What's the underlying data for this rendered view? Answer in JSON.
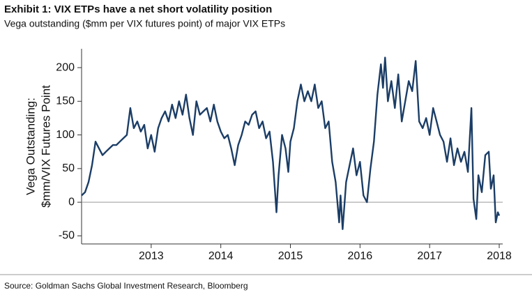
{
  "chart_data": {
    "type": "line",
    "title": "Exhibit 1: VIX ETPs have a net short volatility position",
    "subtitle": "Vega outstanding ($mm per VIX futures point) of major VIX ETPs",
    "ylabel": [
      "Vega Outstanding:",
      "$mm/VIX Futures Point"
    ],
    "source": "Source: Goldman Sachs Global Investment Research, Bloomberg",
    "xlim": [
      2012,
      2018.05
    ],
    "xticks": [
      2013,
      2014,
      2015,
      2016,
      2017,
      2018
    ],
    "ylim": [
      -62,
      228
    ],
    "yticks": [
      -50,
      0,
      50,
      100,
      150,
      200
    ],
    "zero_line": true,
    "x": [
      2012.0,
      2012.05,
      2012.1,
      2012.15,
      2012.2,
      2012.25,
      2012.3,
      2012.35,
      2012.4,
      2012.45,
      2012.5,
      2012.55,
      2012.6,
      2012.65,
      2012.7,
      2012.75,
      2012.8,
      2012.85,
      2012.9,
      2012.95,
      2013.0,
      2013.05,
      2013.1,
      2013.15,
      2013.2,
      2013.25,
      2013.3,
      2013.35,
      2013.4,
      2013.45,
      2013.5,
      2013.55,
      2013.6,
      2013.65,
      2013.7,
      2013.75,
      2013.8,
      2013.85,
      2013.9,
      2013.95,
      2014.0,
      2014.05,
      2014.1,
      2014.15,
      2014.2,
      2014.25,
      2014.3,
      2014.35,
      2014.4,
      2014.45,
      2014.5,
      2014.55,
      2014.6,
      2014.65,
      2014.7,
      2014.75,
      2014.8,
      2014.83,
      2014.88,
      2014.93,
      2014.97,
      2015.0,
      2015.05,
      2015.1,
      2015.15,
      2015.2,
      2015.25,
      2015.3,
      2015.35,
      2015.4,
      2015.45,
      2015.5,
      2015.55,
      2015.6,
      2015.65,
      2015.7,
      2015.72,
      2015.75,
      2015.8,
      2015.85,
      2015.9,
      2015.95,
      2016.0,
      2016.05,
      2016.1,
      2016.15,
      2016.2,
      2016.25,
      2016.3,
      2016.33,
      2016.36,
      2016.4,
      2016.45,
      2016.5,
      2016.55,
      2016.6,
      2016.65,
      2016.7,
      2016.75,
      2016.8,
      2016.85,
      2016.9,
      2016.95,
      2017.0,
      2017.05,
      2017.1,
      2017.15,
      2017.2,
      2017.25,
      2017.3,
      2017.35,
      2017.4,
      2017.45,
      2017.5,
      2017.55,
      2017.6,
      2017.63,
      2017.67,
      2017.7,
      2017.75,
      2017.8,
      2017.85,
      2017.88,
      2017.92,
      2017.95,
      2017.98,
      2018.0
    ],
    "series": [
      {
        "name": "Vega outstanding",
        "color": "#1b3d66",
        "values": [
          10,
          15,
          30,
          55,
          90,
          80,
          70,
          75,
          80,
          85,
          85,
          90,
          95,
          100,
          140,
          110,
          120,
          105,
          115,
          80,
          100,
          75,
          110,
          125,
          135,
          120,
          145,
          125,
          150,
          130,
          160,
          125,
          100,
          150,
          130,
          135,
          140,
          120,
          145,
          120,
          105,
          95,
          100,
          80,
          55,
          85,
          100,
          120,
          115,
          130,
          135,
          110,
          120,
          95,
          105,
          60,
          -15,
          40,
          100,
          80,
          45,
          90,
          110,
          150,
          175,
          150,
          165,
          150,
          175,
          140,
          150,
          110,
          120,
          60,
          30,
          -30,
          10,
          -40,
          30,
          55,
          80,
          40,
          60,
          10,
          0,
          50,
          90,
          160,
          205,
          170,
          215,
          150,
          180,
          140,
          190,
          120,
          150,
          180,
          165,
          210,
          120,
          110,
          125,
          100,
          140,
          120,
          100,
          90,
          60,
          95,
          55,
          80,
          60,
          75,
          45,
          140,
          5,
          -25,
          40,
          15,
          70,
          75,
          20,
          40,
          -30,
          -15,
          -20
        ]
      }
    ]
  }
}
